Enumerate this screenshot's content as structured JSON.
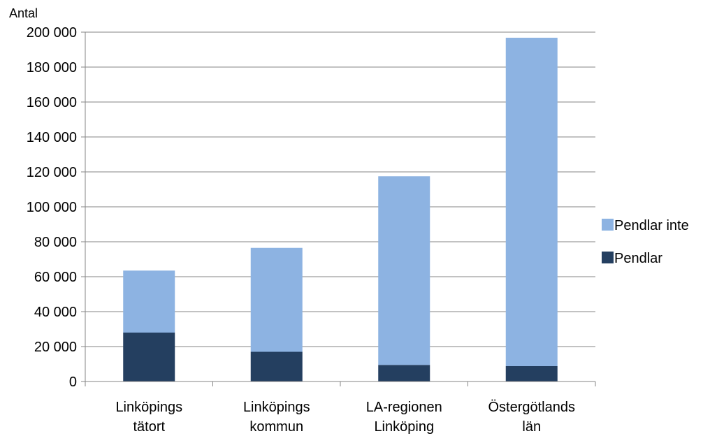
{
  "chart_data": {
    "type": "bar",
    "stacked": true,
    "ylabel": "Antal",
    "ylim": [
      0,
      200000
    ],
    "ytick_step": 20000,
    "yticks": [
      "0",
      "20 000",
      "40 000",
      "60 000",
      "80 000",
      "100 000",
      "120 000",
      "140 000",
      "160 000",
      "180 000",
      "200 000"
    ],
    "categories": [
      [
        "Linköpings",
        "tätort"
      ],
      [
        "Linköpings",
        "kommun"
      ],
      [
        "LA-regionen",
        "Linköping"
      ],
      [
        "Östergötlands",
        "län"
      ]
    ],
    "series": [
      {
        "name": "Pendlar",
        "color": "#243f60",
        "values": [
          28000,
          17000,
          9500,
          8800
        ]
      },
      {
        "name": "Pendlar inte",
        "color": "#8db3e2",
        "values": [
          35500,
          59500,
          108000,
          188000
        ]
      }
    ],
    "legend_order": [
      "Pendlar inte",
      "Pendlar"
    ],
    "legend_position": "right",
    "grid": true
  }
}
